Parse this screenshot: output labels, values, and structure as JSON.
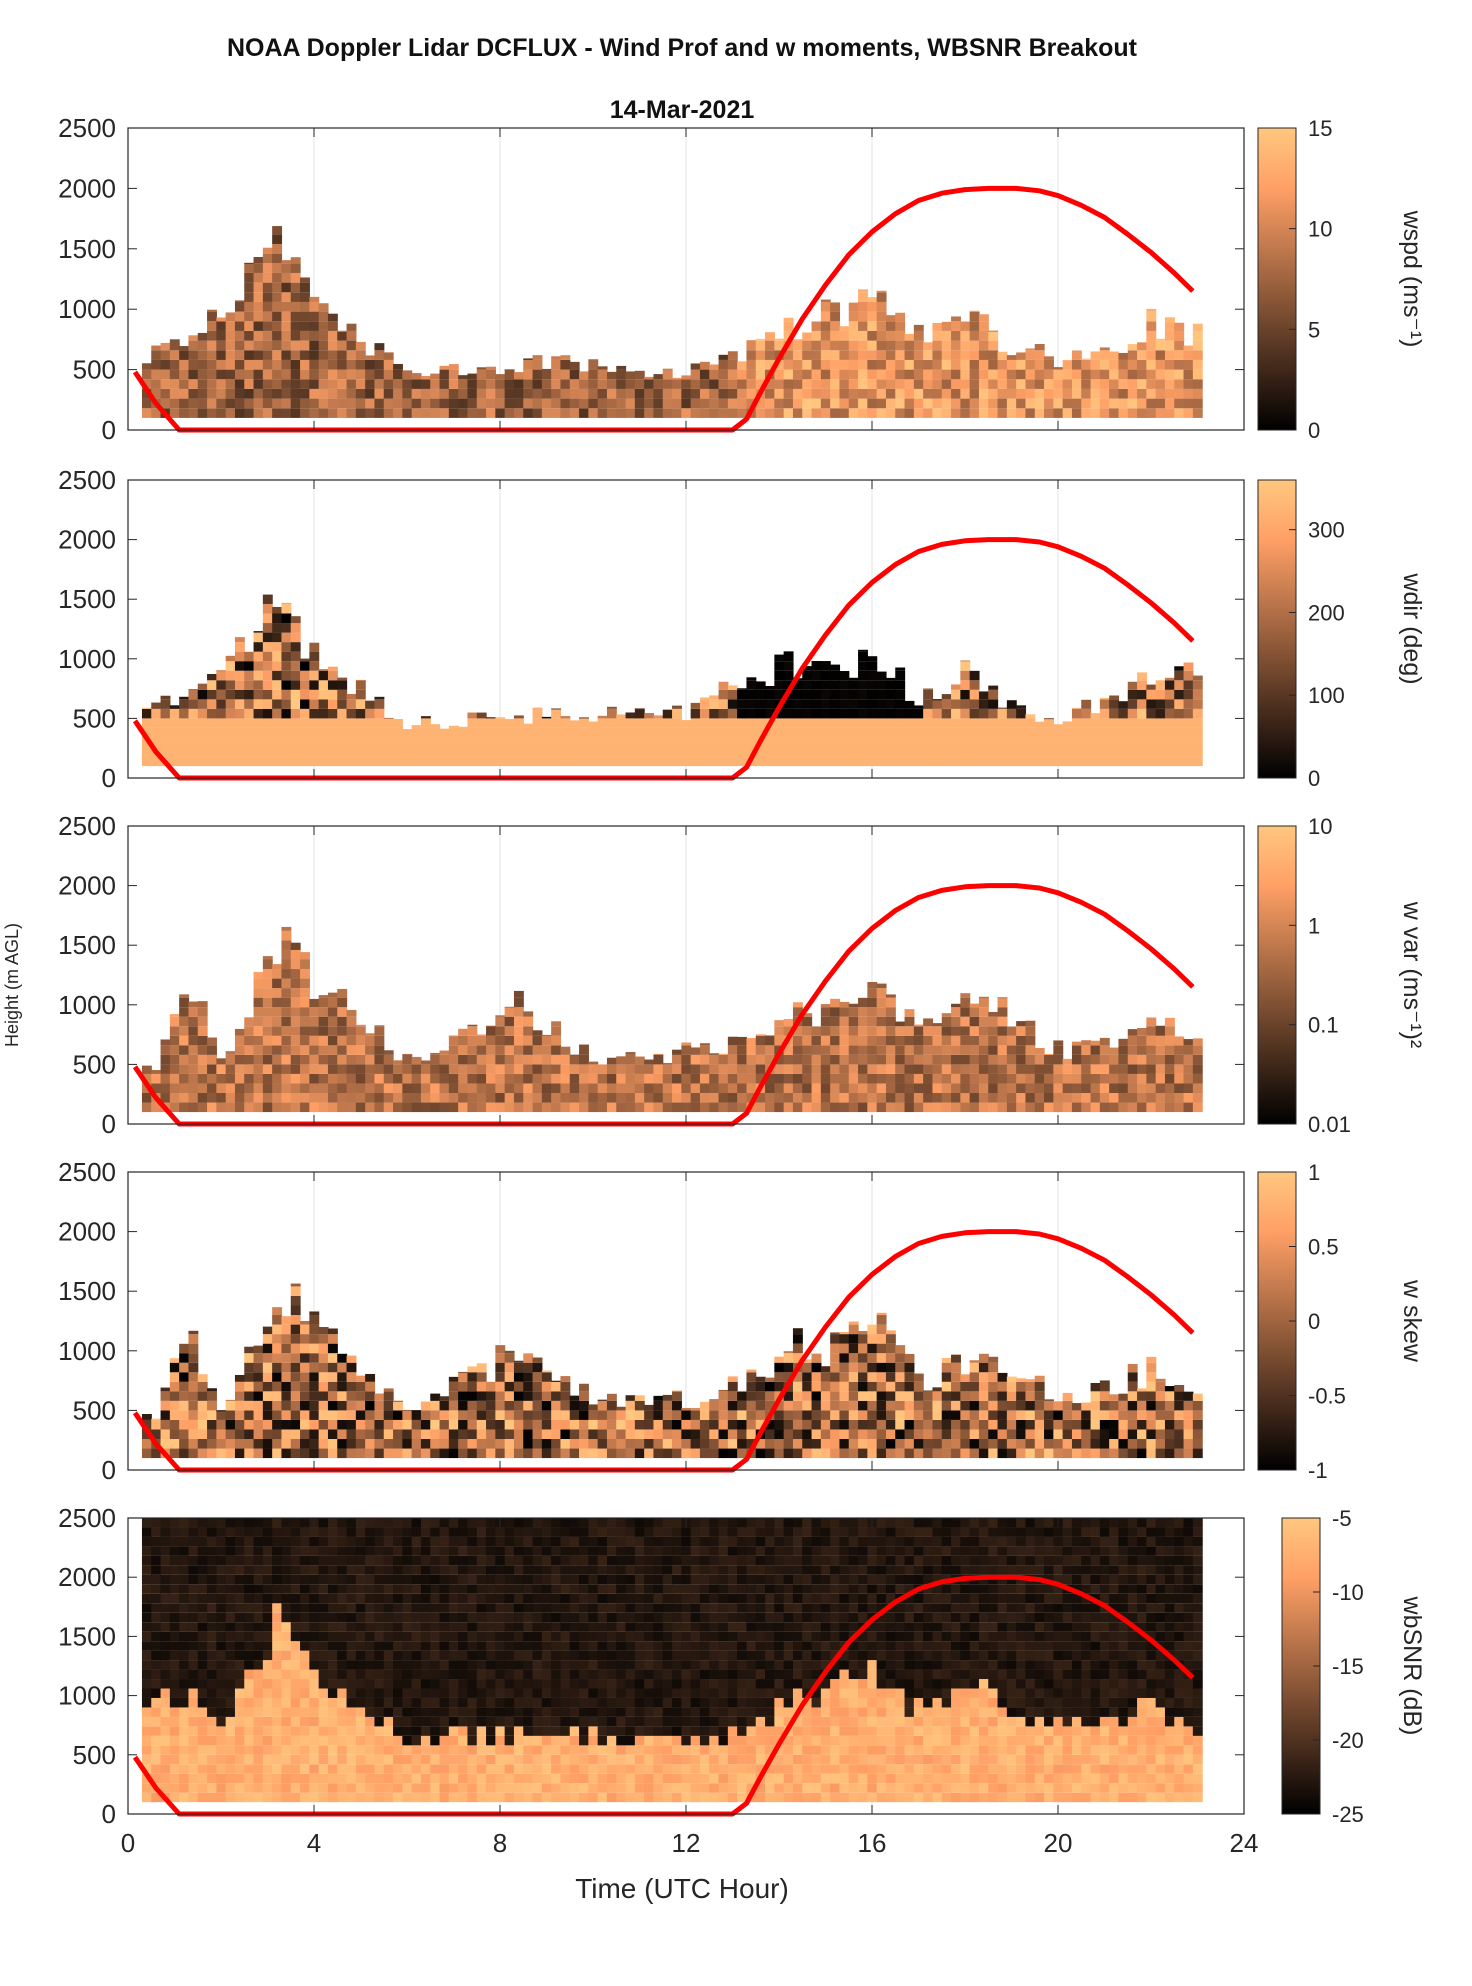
{
  "figure": {
    "title": "NOAA Doppler Lidar DCFLUX - Wind Prof and w moments, WBSNR Breakout",
    "date": "14-Mar-2021",
    "shared_ylabel": "Height (m AGL)",
    "shared_xlabel": "Time (UTC Hour)"
  },
  "chart_data": [
    {
      "type": "heatmap",
      "name": "wspd",
      "colorbar_label": "wspd (ms⁻¹)",
      "xlim": [
        0,
        24
      ],
      "ylim": [
        0,
        2500
      ],
      "x_ticks": [
        0,
        4,
        8,
        12,
        16,
        20,
        24
      ],
      "y_ticks": [
        0,
        500,
        1000,
        1500,
        2000,
        2500
      ],
      "clim": [
        0,
        15
      ],
      "cbar_ticks": [
        "0",
        "5",
        "10",
        "15"
      ],
      "profile_tops_m": [
        [
          0.5,
          650
        ],
        [
          1.5,
          800
        ],
        [
          3.1,
          1500
        ],
        [
          4.0,
          1000
        ],
        [
          6,
          450
        ],
        [
          9,
          550
        ],
        [
          12,
          480
        ],
        [
          13,
          600
        ],
        [
          14,
          850
        ],
        [
          15,
          950
        ],
        [
          16,
          1050
        ],
        [
          17,
          800
        ],
        [
          18,
          900
        ],
        [
          19,
          700
        ],
        [
          20,
          550
        ],
        [
          21,
          650
        ],
        [
          22,
          900
        ],
        [
          22.8,
          800
        ]
      ]
    },
    {
      "type": "heatmap",
      "name": "wdir",
      "colorbar_label": "wdir (deg)",
      "xlim": [
        0,
        24
      ],
      "ylim": [
        0,
        2500
      ],
      "x_ticks": [
        0,
        4,
        8,
        12,
        16,
        20,
        24
      ],
      "y_ticks": [
        0,
        500,
        1000,
        1500,
        2000,
        2500
      ],
      "clim": [
        0,
        360
      ],
      "cbar_ticks": [
        "0",
        "100",
        "200",
        "300"
      ],
      "profile_tops_m": [
        [
          0.5,
          650
        ],
        [
          1.5,
          800
        ],
        [
          3.1,
          1500
        ],
        [
          4.0,
          1000
        ],
        [
          6,
          450
        ],
        [
          9,
          550
        ],
        [
          12,
          550
        ],
        [
          13,
          800
        ],
        [
          14,
          950
        ],
        [
          15,
          950
        ],
        [
          16,
          1000
        ],
        [
          17,
          650
        ],
        [
          18,
          900
        ],
        [
          19,
          600
        ],
        [
          20,
          500
        ],
        [
          21,
          650
        ],
        [
          22,
          900
        ],
        [
          22.8,
          900
        ]
      ]
    },
    {
      "type": "heatmap",
      "name": "w var",
      "colorbar_label": "w var (ms⁻¹)²",
      "xlim": [
        0,
        24
      ],
      "ylim": [
        0,
        2500
      ],
      "x_ticks": [
        0,
        4,
        8,
        12,
        16,
        20,
        24
      ],
      "y_ticks": [
        0,
        500,
        1000,
        1500,
        2000,
        2500
      ],
      "clim": [
        0.01,
        10
      ],
      "log_scale": true,
      "cbar_ticks": [
        "0.01",
        "0.1",
        "1",
        "10"
      ],
      "profile_tops_m": [
        [
          0.5,
          500
        ],
        [
          1.2,
          1200
        ],
        [
          2,
          500
        ],
        [
          3.1,
          1550
        ],
        [
          4.0,
          1150
        ],
        [
          6,
          500
        ],
        [
          8.3,
          1000
        ],
        [
          10,
          550
        ],
        [
          12,
          600
        ],
        [
          13,
          700
        ],
        [
          14.3,
          900
        ],
        [
          15,
          1000
        ],
        [
          16,
          1200
        ],
        [
          17,
          800
        ],
        [
          18.3,
          1050
        ],
        [
          19,
          900
        ],
        [
          20,
          600
        ],
        [
          21,
          650
        ],
        [
          22,
          900
        ],
        [
          22.8,
          650
        ]
      ]
    },
    {
      "type": "heatmap",
      "name": "w skew",
      "colorbar_label": "w skew",
      "xlim": [
        0,
        24
      ],
      "ylim": [
        0,
        2500
      ],
      "x_ticks": [
        0,
        4,
        8,
        12,
        16,
        20,
        24
      ],
      "y_ticks": [
        0,
        500,
        1000,
        1500,
        2000,
        2500
      ],
      "clim": [
        -1,
        1
      ],
      "cbar_ticks": [
        "-1",
        "-0.5",
        "0",
        "0.5",
        "1"
      ],
      "profile_tops_m": [
        [
          0.5,
          500
        ],
        [
          1.2,
          1200
        ],
        [
          2,
          500
        ],
        [
          3.1,
          1550
        ],
        [
          4.0,
          1150
        ],
        [
          6,
          500
        ],
        [
          8.3,
          1000
        ],
        [
          10,
          550
        ],
        [
          12,
          600
        ],
        [
          13,
          700
        ],
        [
          14.3,
          1050
        ],
        [
          15,
          1000
        ],
        [
          16,
          1200
        ],
        [
          17,
          750
        ],
        [
          18.3,
          1000
        ],
        [
          19,
          800
        ],
        [
          20,
          600
        ],
        [
          21,
          700
        ],
        [
          22,
          850
        ],
        [
          22.8,
          650
        ]
      ]
    },
    {
      "type": "heatmap",
      "name": "wbSNR",
      "colorbar_label": "wbSNR (dB)",
      "xlim": [
        0,
        24
      ],
      "ylim": [
        0,
        2500
      ],
      "x_ticks": [
        0,
        4,
        8,
        12,
        16,
        20,
        24
      ],
      "x_tick_labels": [
        "0",
        "4",
        "8",
        "12",
        "16",
        "20",
        "24"
      ],
      "y_ticks": [
        0,
        500,
        1000,
        1500,
        2000,
        2500
      ],
      "clim": [
        -25,
        -5
      ],
      "cbar_ticks": [
        "-25",
        "-20",
        "-15",
        "-10",
        "-5"
      ],
      "profile_tops_m": [
        [
          0.5,
          900
        ],
        [
          1.2,
          1000
        ],
        [
          2,
          600
        ],
        [
          3.1,
          1550
        ],
        [
          4.0,
          1150
        ],
        [
          6,
          550
        ],
        [
          8.3,
          650
        ],
        [
          10,
          600
        ],
        [
          12,
          600
        ],
        [
          13,
          650
        ],
        [
          14.3,
          950
        ],
        [
          15,
          1050
        ],
        [
          16,
          1150
        ],
        [
          17,
          850
        ],
        [
          18.3,
          950
        ],
        [
          19,
          750
        ],
        [
          20,
          700
        ],
        [
          21,
          750
        ],
        [
          22,
          850
        ],
        [
          22.8,
          700
        ]
      ]
    }
  ],
  "overlay_line": {
    "color": "#ff0000",
    "x": [
      0.15,
      0.6,
      1.1,
      2,
      4,
      6,
      8,
      10,
      12,
      13.0,
      13.3,
      13.6,
      14,
      14.5,
      15,
      15.5,
      16,
      16.5,
      17,
      17.5,
      18,
      18.5,
      19.1,
      19.6,
      20,
      20.5,
      21,
      21.5,
      22,
      22.5,
      22.9
    ],
    "y": [
      480,
      220,
      0,
      0,
      0,
      0,
      0,
      0,
      0,
      0,
      90,
      310,
      590,
      920,
      1200,
      1450,
      1640,
      1790,
      1900,
      1960,
      1990,
      2000,
      2000,
      1980,
      1940,
      1860,
      1760,
      1620,
      1470,
      1300,
      1150
    ]
  }
}
